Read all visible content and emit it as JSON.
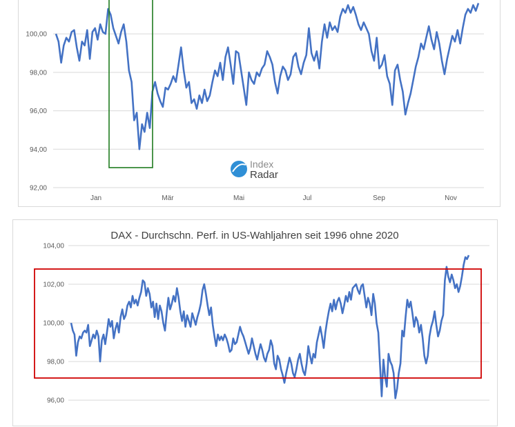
{
  "charts": {
    "top": {
      "y_ticks": [
        "100,00",
        "98,00",
        "96,00",
        "94,00",
        "92,00"
      ],
      "x_ticks": [
        "Jan",
        "Mär",
        "Mai",
        "Jul",
        "Sep",
        "Nov"
      ],
      "logo_line1": "Index",
      "logo_line2": "Radar"
    },
    "bottom": {
      "title": "DAX - Durchschn. Perf. in US-Wahljahren seit 1996 ohne 2020",
      "y_ticks": [
        "104,00",
        "102,00",
        "100,00",
        "98,00",
        "96,00"
      ]
    }
  },
  "colors": {
    "line": "#4472c4",
    "grid": "#d9d9d9",
    "green_box": "#1e7b1e",
    "red_box": "#d00000"
  },
  "chart_data": [
    {
      "type": "line",
      "title": "",
      "x_tick_labels": [
        "Jan",
        "Mär",
        "Mai",
        "Jul",
        "Sep",
        "Nov"
      ],
      "ylim": [
        92,
        101.8
      ],
      "yticks": [
        92,
        94,
        96,
        98,
        100
      ],
      "grid": true,
      "series": [
        {
          "values": [
            100.0,
            99.6,
            98.5,
            99.4,
            99.8,
            99.6,
            100.1,
            100.2,
            99.3,
            98.6,
            99.6,
            99.4,
            100.2,
            98.7,
            100.1,
            100.3,
            99.7,
            100.5,
            100.1,
            100.0,
            101.3,
            101.0,
            100.3,
            99.9,
            99.5,
            100.1,
            100.5,
            99.6,
            98.1,
            97.5,
            95.5,
            95.9,
            94.0,
            95.3,
            94.9,
            95.9,
            95.1,
            97.0,
            97.5,
            96.9,
            96.5,
            96.2,
            97.2,
            97.1,
            97.4,
            97.8,
            97.5,
            98.4,
            99.3,
            98.1,
            97.2,
            97.5,
            96.4,
            96.6,
            96.1,
            96.8,
            96.4,
            97.1,
            96.5,
            96.8,
            97.5,
            98.1,
            97.8,
            98.5,
            97.6,
            98.8,
            99.3,
            98.4,
            97.4,
            99.1,
            99.0,
            98.1,
            97.2,
            96.3,
            98.0,
            97.6,
            97.4,
            98.0,
            97.8,
            98.2,
            98.4,
            99.1,
            98.8,
            98.4,
            97.5,
            96.9,
            97.8,
            98.3,
            98.1,
            97.6,
            97.9,
            98.8,
            99.0,
            98.3,
            97.9,
            98.5,
            98.9,
            100.3,
            99.0,
            98.6,
            99.1,
            98.2,
            99.6,
            100.5,
            99.8,
            100.6,
            100.2,
            100.4,
            100.1,
            100.9,
            101.3,
            101.1,
            101.5,
            101.1,
            101.4,
            101.0,
            100.5,
            100.2,
            100.6,
            100.3,
            100.0,
            99.1,
            98.6,
            99.8,
            98.2,
            98.4,
            98.9,
            97.8,
            97.4,
            96.3,
            98.1,
            98.4,
            97.6,
            97.0,
            95.8,
            96.4,
            96.9,
            97.6,
            98.3,
            98.8,
            99.5,
            99.2,
            99.8,
            100.4,
            99.7,
            99.2,
            100.1,
            99.5,
            98.6,
            97.9,
            98.7,
            99.3,
            99.9,
            99.6,
            100.2,
            99.5,
            100.3,
            101.0,
            101.3,
            101.1,
            101.5,
            101.2,
            101.6
          ]
        }
      ]
    },
    {
      "type": "line",
      "title": "DAX - Durchschn. Perf. in US-Wahljahren seit 1996 ohne 2020",
      "ylim": [
        95.4,
        104
      ],
      "yticks": [
        96,
        98,
        100,
        102,
        104
      ],
      "grid": true,
      "series": [
        {
          "values": [
            100.0,
            99.6,
            99.4,
            98.3,
            99.0,
            99.3,
            99.2,
            99.5,
            99.6,
            99.5,
            99.9,
            98.8,
            99.1,
            99.4,
            99.2,
            99.6,
            99.3,
            98.0,
            99.1,
            99.4,
            98.9,
            99.5,
            100.2,
            99.8,
            100.1,
            99.2,
            99.7,
            100.0,
            99.5,
            100.3,
            100.7,
            100.2,
            100.4,
            100.9,
            101.1,
            100.8,
            101.4,
            101.0,
            101.2,
            100.9,
            101.3,
            101.6,
            102.2,
            102.1,
            101.4,
            101.8,
            101.5,
            100.8,
            101.1,
            100.3,
            101.0,
            100.2,
            100.9,
            100.6,
            100.0,
            99.6,
            100.5,
            101.3,
            100.7,
            101.0,
            101.4,
            101.1,
            101.8,
            101.3,
            100.6,
            100.1,
            100.6,
            99.8,
            100.4,
            100.1,
            99.8,
            100.5,
            100.2,
            99.9,
            100.3,
            100.6,
            101.0,
            101.7,
            102.0,
            101.5,
            100.9,
            100.4,
            100.8,
            99.9,
            99.3,
            98.8,
            99.4,
            99.1,
            99.3,
            99.1,
            99.4,
            99.2,
            98.9,
            98.5,
            98.6,
            99.2,
            98.9,
            99.0,
            99.4,
            99.8,
            99.5,
            99.3,
            99.0,
            98.7,
            98.4,
            98.7,
            99.2,
            98.8,
            98.4,
            98.1,
            98.5,
            98.9,
            98.6,
            98.2,
            98.0,
            98.4,
            98.6,
            99.1,
            98.8,
            97.9,
            97.6,
            98.3,
            98.1,
            97.6,
            97.3,
            96.9,
            97.4,
            97.8,
            98.2,
            97.9,
            97.4,
            97.2,
            97.6,
            98.1,
            98.4,
            97.9,
            97.5,
            97.3,
            97.9,
            98.8,
            98.3,
            97.9,
            98.4,
            98.2,
            99.0,
            99.4,
            99.8,
            99.3,
            98.7,
            99.5,
            100.1,
            100.6,
            101.0,
            100.6,
            101.2,
            100.7,
            101.1,
            101.3,
            101.0,
            100.5,
            100.9,
            101.4,
            101.1,
            101.6,
            101.2,
            101.8,
            101.9,
            102.0,
            101.7,
            101.5,
            101.9,
            102.0,
            101.4,
            100.8,
            101.3,
            101.0,
            100.4,
            101.5,
            101.0,
            100.0,
            99.5,
            97.8,
            96.2,
            98.1,
            97.2,
            96.7,
            98.4,
            98.0,
            97.8,
            97.4,
            96.1,
            96.6,
            97.4,
            97.9,
            99.6,
            99.3,
            100.3,
            101.2,
            100.8,
            101.1,
            100.5,
            99.8,
            100.3,
            100.1,
            99.5,
            99.9,
            99.2,
            98.3,
            97.9,
            98.3,
            99.3,
            99.8,
            100.1,
            100.6,
            99.9,
            99.3,
            99.6,
            100.1,
            100.4,
            102.2,
            102.9,
            102.4,
            102.1,
            102.5,
            102.2,
            101.8,
            102.0,
            101.6,
            101.9,
            102.4,
            103.0,
            103.4,
            103.3,
            103.5
          ]
        }
      ]
    }
  ]
}
